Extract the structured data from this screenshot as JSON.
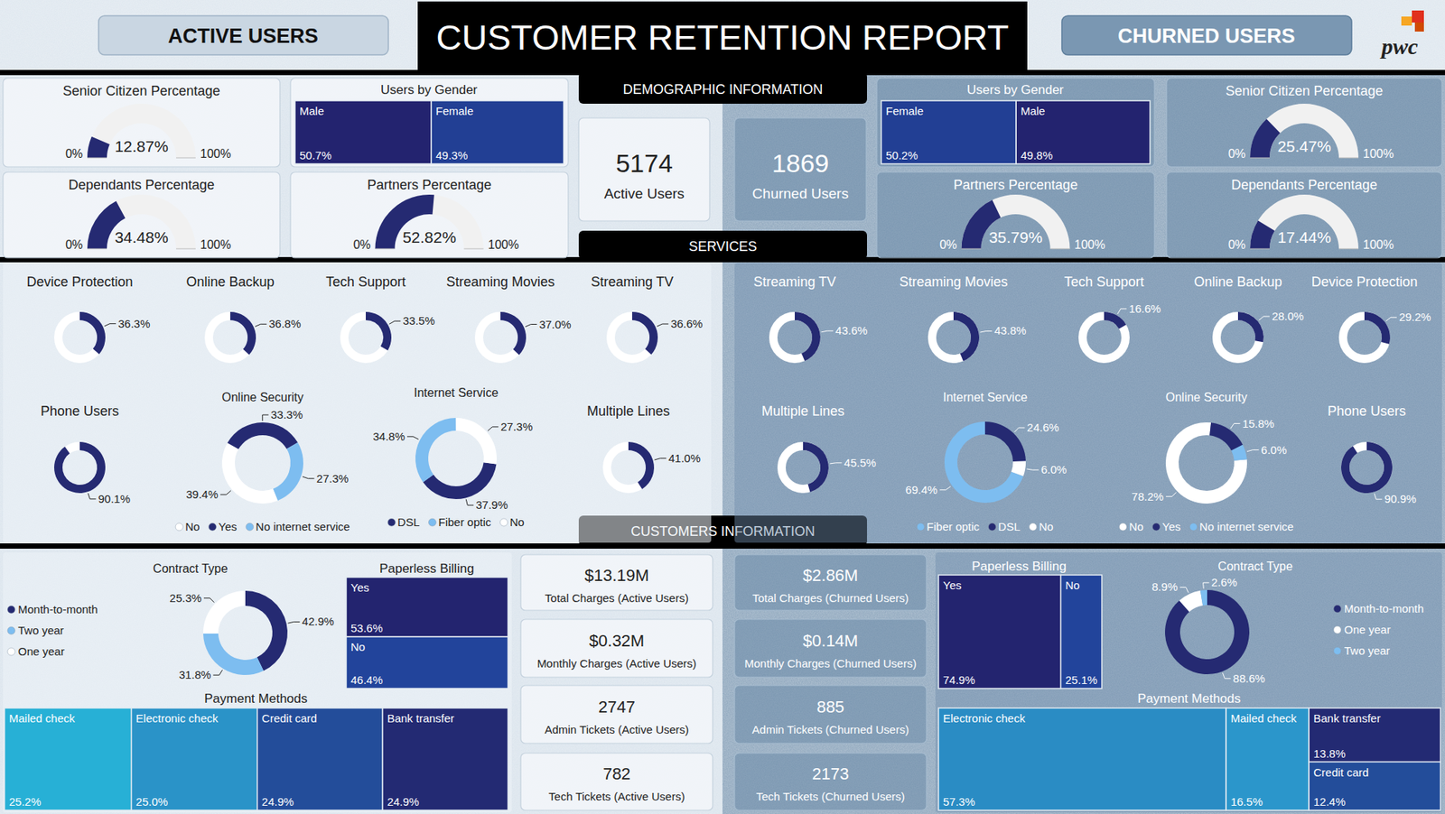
{
  "header": {
    "left_tab": "ACTIVE USERS",
    "title": "CUSTOMER RETENTION REPORT",
    "right_tab": "CHURNED USERS",
    "logo": "pwc"
  },
  "sections": [
    "DEMOGRAPHIC INFORMATION",
    "SERVICES",
    "CUSTOMERS INFORMATION"
  ],
  "kpis": [
    {
      "value": 5174,
      "label": "Active Users"
    },
    {
      "value": 1869,
      "label": "Churned Users"
    },
    {
      "value": "$13.19M",
      "label": "Total Charges (Active Users)"
    },
    {
      "value": "$0.32M",
      "label": "Monthly Charges (Active Users)"
    },
    {
      "value": 2747,
      "label": "Admin Tickets (Active Users)"
    },
    {
      "value": 782,
      "label": "Tech Tickets (Active Users)"
    },
    {
      "value": "$2.86M",
      "label": "Total Charges (Churned Users)"
    },
    {
      "value": "$0.14M",
      "label": "Monthly Charges (Churned Users)"
    },
    {
      "value": 885,
      "label": "Admin Tickets (Churned Users)"
    },
    {
      "value": 2173,
      "label": "Tech Tickets (Churned Users)"
    }
  ],
  "chart_data": [
    {
      "type": "gauge",
      "title": "Senior Citizen Percentage",
      "values": [
        12.87
      ],
      "value_labels": [
        "12.87%"
      ],
      "ylim": [
        0,
        100
      ],
      "yticks": [
        {
          "value": 0,
          "label": "0%"
        },
        {
          "value": 100,
          "label": "100%"
        }
      ],
      "color": "#252a72",
      "data_labels": true
    },
    {
      "type": "treemap",
      "title": "Users by Gender",
      "categories": [
        "Male",
        "Female"
      ],
      "values": [
        50.7,
        49.3
      ],
      "value_labels": [
        "50.7%",
        "49.3%"
      ],
      "colors": [
        "#23236f",
        "#223f94"
      ],
      "data_labels": true
    },
    {
      "type": "gauge",
      "title": "Dependants Percentage",
      "values": [
        34.48
      ],
      "value_labels": [
        "34.48%"
      ],
      "ylim": [
        0,
        100
      ],
      "yticks": [
        {
          "value": 0,
          "label": "0%"
        },
        {
          "value": 100,
          "label": "100%"
        }
      ],
      "color": "#252a72",
      "data_labels": true
    },
    {
      "type": "gauge",
      "title": "Partners Percentage",
      "values": [
        52.82
      ],
      "value_labels": [
        "52.82%"
      ],
      "ylim": [
        0,
        100
      ],
      "yticks": [
        {
          "value": 0,
          "label": "0%"
        },
        {
          "value": 100,
          "label": "100%"
        }
      ],
      "color": "#252a72",
      "data_labels": true
    },
    {
      "type": "treemap",
      "title": "Users by Gender",
      "categories": [
        "Female",
        "Male"
      ],
      "values": [
        50.2,
        49.8
      ],
      "value_labels": [
        "50.2%",
        "49.8%"
      ],
      "colors": [
        "#223f94",
        "#23236f"
      ],
      "data_labels": true
    },
    {
      "type": "gauge",
      "title": "Senior Citizen Percentage",
      "values": [
        25.47
      ],
      "value_labels": [
        "25.47%"
      ],
      "ylim": [
        0,
        100
      ],
      "yticks": [
        {
          "value": 0,
          "label": "0%"
        },
        {
          "value": 100,
          "label": "100%"
        }
      ],
      "color": "#252a72",
      "data_labels": true
    },
    {
      "type": "gauge",
      "title": "Partners Percentage",
      "values": [
        35.79
      ],
      "value_labels": [
        "35.79%"
      ],
      "ylim": [
        0,
        100
      ],
      "yticks": [
        {
          "value": 0,
          "label": "0%"
        },
        {
          "value": 100,
          "label": "100%"
        }
      ],
      "color": "#252a72",
      "data_labels": true
    },
    {
      "type": "gauge",
      "title": "Dependants Percentage",
      "values": [
        17.44
      ],
      "value_labels": [
        "17.44%"
      ],
      "ylim": [
        0,
        100
      ],
      "yticks": [
        {
          "value": 0,
          "label": "0%"
        },
        {
          "value": 100,
          "label": "100%"
        }
      ],
      "color": "#252a72",
      "data_labels": true
    },
    {
      "type": "donut",
      "title": "Device Protection",
      "values": [
        36.3
      ],
      "value_labels": [
        "36.3%"
      ],
      "ylim": [
        0,
        100
      ],
      "color": "#252a72",
      "data_labels": true
    },
    {
      "type": "donut",
      "title": "Online Backup",
      "values": [
        36.8
      ],
      "value_labels": [
        "36.8%"
      ],
      "ylim": [
        0,
        100
      ],
      "color": "#252a72",
      "data_labels": true
    },
    {
      "type": "donut",
      "title": "Tech Support",
      "values": [
        33.5
      ],
      "value_labels": [
        "33.5%"
      ],
      "ylim": [
        0,
        100
      ],
      "color": "#252a72",
      "data_labels": true
    },
    {
      "type": "donut",
      "title": "Streaming Movies",
      "values": [
        37.0
      ],
      "value_labels": [
        "37.0%"
      ],
      "ylim": [
        0,
        100
      ],
      "color": "#252a72",
      "data_labels": true
    },
    {
      "type": "donut",
      "title": "Streaming TV",
      "values": [
        36.6
      ],
      "value_labels": [
        "36.6%"
      ],
      "ylim": [
        0,
        100
      ],
      "color": "#252a72",
      "data_labels": true
    },
    {
      "type": "donut",
      "title": "Phone Users",
      "values": [
        90.1
      ],
      "value_labels": [
        "90.1%"
      ],
      "ylim": [
        0,
        100
      ],
      "color": "#252a72",
      "data_labels": true
    },
    {
      "type": "donut",
      "title": "Online Security",
      "categories": [
        "No",
        "Yes",
        "No internet service"
      ],
      "values": [
        39.4,
        33.3,
        27.3
      ],
      "value_labels": [
        "39.4%",
        "33.3%",
        "27.3%"
      ],
      "colors": [
        "#ffffff",
        "#252a72",
        "#7dbdf0"
      ],
      "legend": "bottom",
      "data_labels": true
    },
    {
      "type": "donut",
      "title": "Internet Service",
      "categories": [
        "DSL",
        "Fiber optic",
        "No"
      ],
      "values": [
        37.9,
        34.8,
        27.3
      ],
      "value_labels": [
        "37.9%",
        "34.8%",
        "27.3%"
      ],
      "colors": [
        "#252a72",
        "#7dbdf0",
        "#ffffff"
      ],
      "legend": "bottom",
      "data_labels": true
    },
    {
      "type": "donut",
      "title": "Multiple Lines",
      "values": [
        41.0
      ],
      "value_labels": [
        "41.0%"
      ],
      "ylim": [
        0,
        100
      ],
      "color": "#252a72",
      "data_labels": true
    },
    {
      "type": "donut",
      "title": "Streaming TV",
      "values": [
        43.6
      ],
      "value_labels": [
        "43.6%"
      ],
      "ylim": [
        0,
        100
      ],
      "color": "#252a72",
      "data_labels": true
    },
    {
      "type": "donut",
      "title": "Streaming Movies",
      "values": [
        43.8
      ],
      "value_labels": [
        "43.8%"
      ],
      "ylim": [
        0,
        100
      ],
      "color": "#252a72",
      "data_labels": true
    },
    {
      "type": "donut",
      "title": "Tech Support",
      "values": [
        16.6
      ],
      "value_labels": [
        "16.6%"
      ],
      "ylim": [
        0,
        100
      ],
      "color": "#252a72",
      "data_labels": true
    },
    {
      "type": "donut",
      "title": "Online Backup",
      "values": [
        28.0
      ],
      "value_labels": [
        "28.0%"
      ],
      "ylim": [
        0,
        100
      ],
      "color": "#252a72",
      "data_labels": true
    },
    {
      "type": "donut",
      "title": "Device Protection",
      "values": [
        29.2
      ],
      "value_labels": [
        "29.2%"
      ],
      "ylim": [
        0,
        100
      ],
      "color": "#252a72",
      "data_labels": true
    },
    {
      "type": "donut",
      "title": "Multiple Lines",
      "values": [
        45.5
      ],
      "value_labels": [
        "45.5%"
      ],
      "ylim": [
        0,
        100
      ],
      "color": "#252a72",
      "data_labels": true
    },
    {
      "type": "donut",
      "title": "Internet Service",
      "categories": [
        "Fiber optic",
        "DSL",
        "No"
      ],
      "values": [
        69.4,
        24.6,
        6.0
      ],
      "value_labels": [
        "69.4%",
        "24.6%",
        "6.0%"
      ],
      "colors": [
        "#7dbdf0",
        "#252a72",
        "#ffffff"
      ],
      "legend": "bottom",
      "data_labels": true
    },
    {
      "type": "donut",
      "title": "Online Security",
      "categories": [
        "No",
        "Yes",
        "No internet service"
      ],
      "values": [
        78.2,
        15.8,
        6.0
      ],
      "value_labels": [
        "78.2%",
        "15.8%",
        "6.0%"
      ],
      "colors": [
        "#ffffff",
        "#252a72",
        "#7dbdf0"
      ],
      "legend": "bottom",
      "data_labels": true
    },
    {
      "type": "donut",
      "title": "Phone Users",
      "values": [
        90.9
      ],
      "value_labels": [
        "90.9%"
      ],
      "ylim": [
        0,
        100
      ],
      "color": "#252a72",
      "data_labels": true
    },
    {
      "type": "donut",
      "title": "Contract Type",
      "categories": [
        "Month-to-month",
        "Two year",
        "One year"
      ],
      "values": [
        42.9,
        31.8,
        25.3
      ],
      "value_labels": [
        "42.9%",
        "31.8%",
        "25.3%"
      ],
      "colors": [
        "#252a72",
        "#7dbdf0",
        "#ffffff"
      ],
      "legend": "left",
      "data_labels": true
    },
    {
      "type": "treemap",
      "title": "Paperless Billing",
      "categories": [
        "Yes",
        "No"
      ],
      "values": [
        53.6,
        46.4
      ],
      "value_labels": [
        "53.6%",
        "46.4%"
      ],
      "colors": [
        "#23246f",
        "#22449b"
      ],
      "data_labels": true
    },
    {
      "type": "treemap",
      "title": "Payment Methods",
      "categories": [
        "Mailed check",
        "Electronic check",
        "Credit card",
        "Bank transfer"
      ],
      "values": [
        25.2,
        25.0,
        24.9,
        24.9
      ],
      "value_labels": [
        "25.2%",
        "25.0%",
        "24.9%",
        "24.9%"
      ],
      "colors": [
        "#27b0d6",
        "#2a93c8",
        "#234d9a",
        "#232a73"
      ],
      "data_labels": true
    },
    {
      "type": "treemap",
      "title": "Paperless Billing",
      "categories": [
        "Yes",
        "No"
      ],
      "values": [
        74.9,
        25.1
      ],
      "value_labels": [
        "74.9%",
        "25.1%"
      ],
      "colors": [
        "#23246f",
        "#22449b"
      ],
      "data_labels": true
    },
    {
      "type": "donut",
      "title": "Contract Type",
      "categories": [
        "Month-to-month",
        "One year",
        "Two year"
      ],
      "values": [
        88.6,
        8.9,
        2.6
      ],
      "value_labels": [
        "88.6%",
        "8.9%",
        "2.6%"
      ],
      "colors": [
        "#252a72",
        "#ffffff",
        "#7dbdf0"
      ],
      "legend": "right",
      "data_labels": true
    },
    {
      "type": "treemap",
      "title": "Payment Methods",
      "categories": [
        "Electronic check",
        "Mailed check",
        "Bank transfer",
        "Credit card"
      ],
      "values": [
        57.3,
        16.5,
        13.8,
        12.4
      ],
      "value_labels": [
        "57.3%",
        "16.5%",
        "13.8%",
        "12.4%"
      ],
      "colors": [
        "#2a8cc4",
        "#2b96cb",
        "#232a73",
        "#234d9a"
      ],
      "data_labels": true
    }
  ]
}
